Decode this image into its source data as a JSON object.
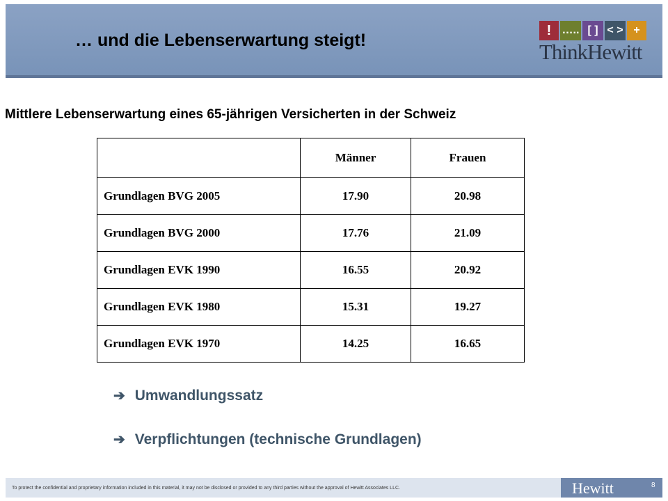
{
  "header": {
    "title": "… und die Lebenserwartung steigt!",
    "logo": {
      "blocks": [
        "!",
        "…..",
        "[ ]",
        "< >",
        "+"
      ],
      "text": "ThinkHewitt"
    }
  },
  "subtitle": "Mittlere Lebenserwartung eines 65-jährigen Versicherten in der Schweiz",
  "table": {
    "columns": [
      "",
      "Männer",
      "Frauen"
    ],
    "rows": [
      {
        "label": "Grundlagen BVG 2005",
        "maenner": "17.90",
        "frauen": "20.98"
      },
      {
        "label": "Grundlagen BVG 2000",
        "maenner": "17.76",
        "frauen": "21.09"
      },
      {
        "label": "Grundlagen EVK 1990",
        "maenner": "16.55",
        "frauen": "20.92"
      },
      {
        "label": "Grundlagen EVK 1980",
        "maenner": "15.31",
        "frauen": "19.27"
      },
      {
        "label": "Grundlagen EVK 1970",
        "maenner": "14.25",
        "frauen": "16.65"
      }
    ]
  },
  "bullets": [
    {
      "arrow": "➔",
      "text": "Umwandlungssatz"
    },
    {
      "arrow": "➔",
      "text": "Verpflichtungen (technische Grundlagen)"
    }
  ],
  "footer": {
    "disclaimer": "To protect the confidential and proprietary information included in this material, it may not be disclosed or provided to any third parties without the approval of Hewitt Associates LLC.",
    "logo": "Hewitt",
    "page": "8"
  }
}
